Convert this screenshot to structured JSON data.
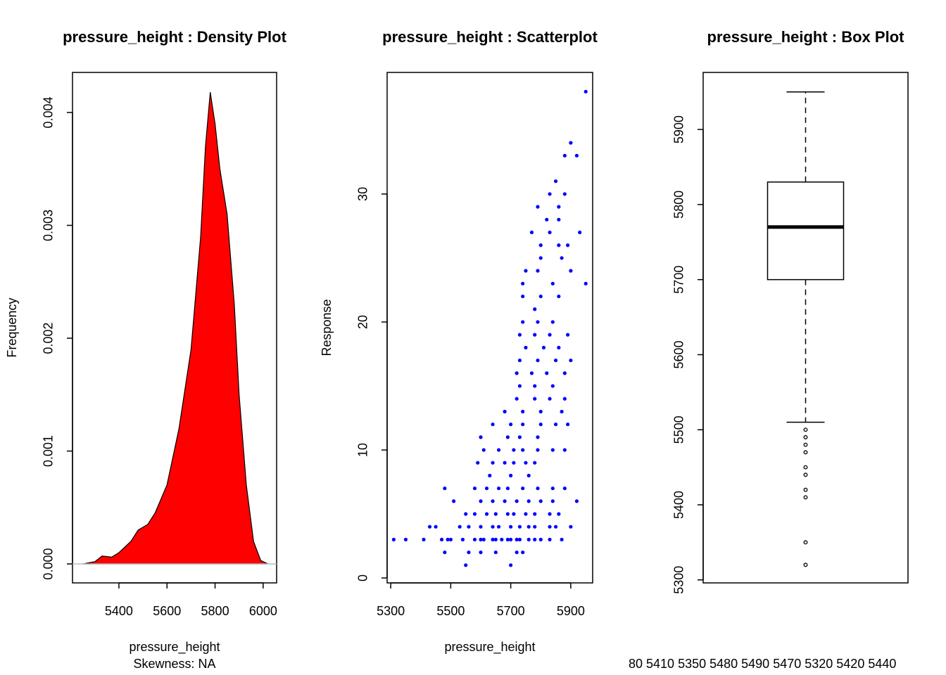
{
  "chart_data": [
    {
      "type": "area",
      "title": "pressure_height : Density Plot",
      "xlabel": "pressure_height",
      "subtitle": "Skewness:  NA",
      "ylabel": "Frequency",
      "x": [
        5250,
        5300,
        5330,
        5370,
        5400,
        5450,
        5480,
        5520,
        5550,
        5600,
        5650,
        5700,
        5740,
        5760,
        5780,
        5800,
        5820,
        5850,
        5880,
        5900,
        5930,
        5960,
        5990,
        6020
      ],
      "values": [
        0,
        2e-05,
        7e-05,
        6e-05,
        0.0001,
        0.0002,
        0.0003,
        0.00035,
        0.00045,
        0.0007,
        0.0012,
        0.0019,
        0.0029,
        0.0037,
        0.00418,
        0.0039,
        0.0035,
        0.0031,
        0.0023,
        0.0015,
        0.0007,
        0.0002,
        3e-05,
        0
      ],
      "color": "#ff0000",
      "xlim": [
        5207,
        6056
      ],
      "xticks": [
        5400,
        5600,
        5800,
        6000
      ],
      "ylim": [
        -0.000168,
        0.004355
      ],
      "yticks": [
        {
          "value": 0,
          "label": "0.000"
        },
        0.001,
        0.002,
        0.003,
        0.004
      ]
    },
    {
      "type": "scatter",
      "title": "pressure_height : Scatterplot",
      "xlabel": "pressure_height",
      "ylabel": "Response",
      "color": "#0000ff",
      "x": [
        5550,
        5700,
        5480,
        5560,
        5600,
        5650,
        5720,
        5740,
        5310,
        5350,
        5410,
        5470,
        5490,
        5500,
        5540,
        5580,
        5600,
        5610,
        5640,
        5650,
        5670,
        5690,
        5700,
        5720,
        5730,
        5760,
        5780,
        5800,
        5830,
        5870,
        5430,
        5450,
        5530,
        5560,
        5600,
        5640,
        5660,
        5700,
        5730,
        5760,
        5780,
        5830,
        5850,
        5900,
        5550,
        5580,
        5620,
        5650,
        5690,
        5710,
        5750,
        5780,
        5830,
        5860,
        5510,
        5600,
        5640,
        5680,
        5720,
        5760,
        5800,
        5840,
        5920,
        5480,
        5580,
        5620,
        5660,
        5690,
        5740,
        5790,
        5840,
        5880,
        5630,
        5700,
        5760,
        5590,
        5640,
        5680,
        5710,
        5750,
        5780,
        5610,
        5660,
        5710,
        5740,
        5790,
        5840,
        5880,
        5600,
        5690,
        5730,
        5790,
        5640,
        5700,
        5740,
        5800,
        5850,
        5890,
        5680,
        5740,
        5800,
        5870,
        5720,
        5780,
        5830,
        5880,
        5730,
        5780,
        5840,
        5720,
        5770,
        5820,
        5880,
        5730,
        5790,
        5850,
        5900,
        5750,
        5810,
        5860,
        5730,
        5780,
        5830,
        5890,
        5740,
        5790,
        5840,
        5780,
        5740,
        5800,
        5860,
        5740,
        5840,
        5950,
        5750,
        5790,
        5900,
        5800,
        5870,
        5800,
        5860,
        5890,
        5770,
        5830,
        5930,
        5820,
        5860,
        5790,
        5860,
        5830,
        5880,
        5850,
        5880,
        5920,
        5900,
        5950
      ],
      "values": [
        1,
        1,
        2,
        2,
        2,
        2,
        2,
        2,
        3,
        3,
        3,
        3,
        3,
        3,
        3,
        3,
        3,
        3,
        3,
        3,
        3,
        3,
        3,
        3,
        3,
        3,
        3,
        3,
        3,
        3,
        4,
        4,
        4,
        4,
        4,
        4,
        4,
        4,
        4,
        4,
        4,
        4,
        4,
        4,
        5,
        5,
        5,
        5,
        5,
        5,
        5,
        5,
        5,
        5,
        6,
        6,
        6,
        6,
        6,
        6,
        6,
        6,
        6,
        7,
        7,
        7,
        7,
        7,
        7,
        7,
        7,
        7,
        8,
        8,
        8,
        9,
        9,
        9,
        9,
        9,
        9,
        10,
        10,
        10,
        10,
        10,
        10,
        10,
        11,
        11,
        11,
        11,
        12,
        12,
        12,
        12,
        12,
        12,
        13,
        13,
        13,
        13,
        14,
        14,
        14,
        14,
        15,
        15,
        15,
        16,
        16,
        16,
        16,
        17,
        17,
        17,
        17,
        18,
        18,
        18,
        19,
        19,
        19,
        19,
        20,
        20,
        20,
        21,
        22,
        22,
        22,
        23,
        23,
        23,
        24,
        24,
        24,
        25,
        25,
        26,
        26,
        26,
        27,
        27,
        27,
        28,
        28,
        29,
        29,
        30,
        30,
        31,
        33,
        33,
        34,
        38
      ],
      "xlim": [
        5288,
        5973
      ],
      "xticks": [
        5300,
        5500,
        5700,
        5900
      ],
      "ylim": [
        -0.385,
        39.5
      ],
      "yticks": [
        0,
        10,
        20,
        30
      ]
    },
    {
      "type": "box",
      "title": "pressure_height : Box Plot",
      "whisker_low": 5510,
      "q1": 5700,
      "median": 5770,
      "q3": 5830,
      "whisker_high": 5950,
      "outliers": [
        5500,
        5490,
        5480,
        5470,
        5450,
        5440,
        5420,
        5410,
        5350,
        5320
      ],
      "annotation": "80 5410 5350 5480 5490 5470 5320 5420 5440",
      "ylim": [
        5296,
        5976
      ],
      "yticks": [
        5300,
        5400,
        5500,
        5600,
        5700,
        5800,
        5900
      ]
    }
  ]
}
